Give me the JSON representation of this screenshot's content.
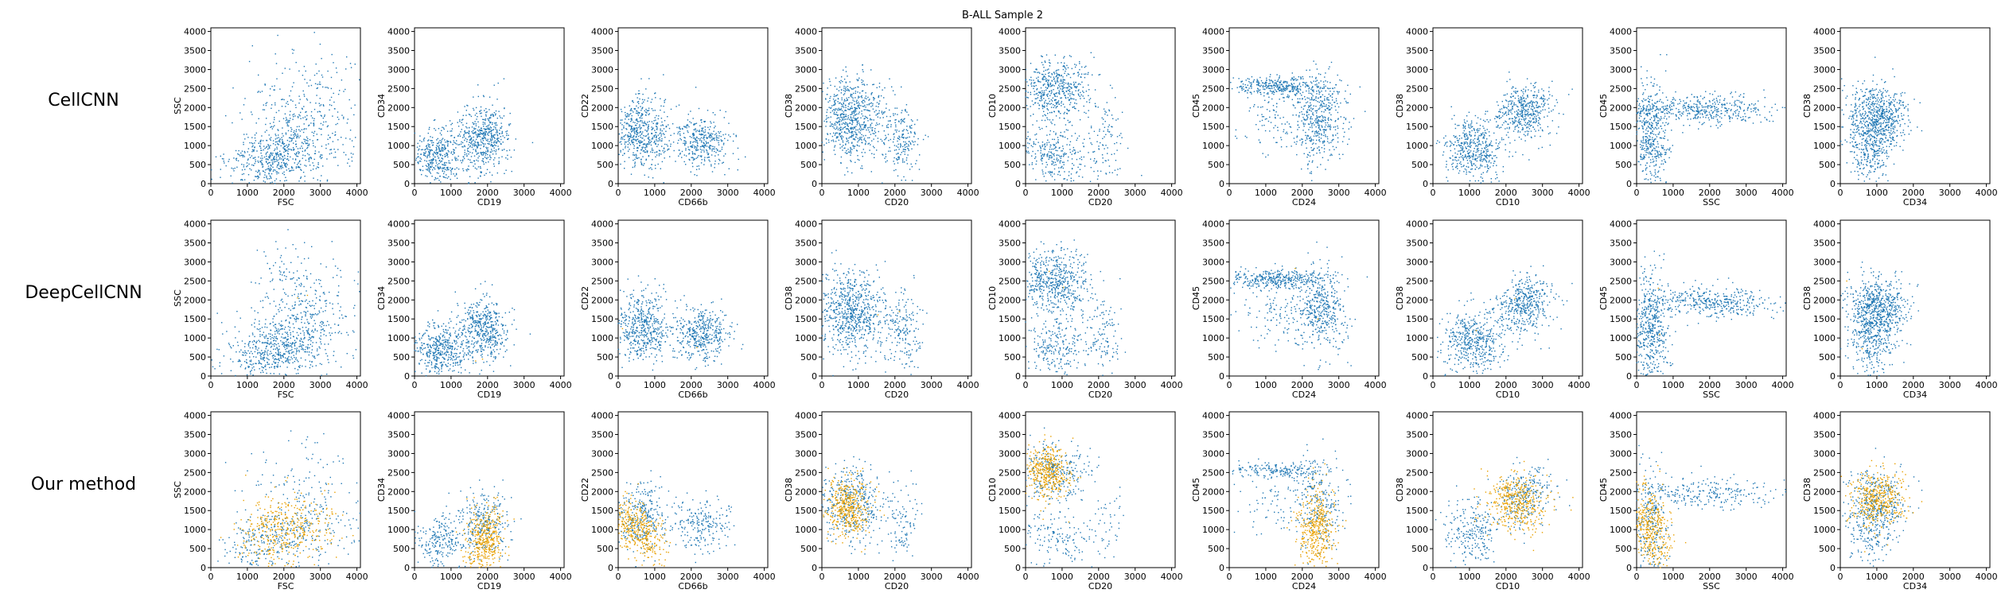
{
  "figure": {
    "title": "B-ALL Sample 2",
    "rows": [
      "CellCNN",
      "DeepCellCNN",
      "Our method"
    ]
  },
  "colors": {
    "background_cells": "#1f77b4",
    "selected_cells": "#e8a000"
  },
  "chart_data": {
    "type": "scatter",
    "title": "B-ALL Sample 2",
    "grid": false,
    "legend": "none",
    "xlim": [
      0,
      4096
    ],
    "ylim": [
      0,
      4096
    ],
    "ticks": [
      0,
      500,
      1000,
      1500,
      2000,
      2500,
      3000,
      3500,
      4000
    ],
    "x_ticks": [
      0,
      1000,
      2000,
      3000,
      4000
    ],
    "panels": [
      {
        "xlabel": "FSC",
        "ylabel": "SSC",
        "clusters": [
          {
            "x": 1700,
            "y": 700,
            "sx": 700,
            "sy": 380,
            "w": 0.55,
            "rot": 0.25
          },
          {
            "x": 2600,
            "y": 1600,
            "sx": 800,
            "sy": 900,
            "w": 0.45,
            "rot": 0.6
          }
        ],
        "selected_clusters": [
          {
            "x": 2000,
            "y": 1000,
            "sx": 650,
            "sy": 450,
            "w": 1.0,
            "rot": 0.3
          }
        ]
      },
      {
        "xlabel": "CD19",
        "ylabel": "CD34",
        "clusters": [
          {
            "x": 1900,
            "y": 1200,
            "sx": 350,
            "sy": 450,
            "w": 0.55,
            "rot": 0.0
          },
          {
            "x": 700,
            "y": 700,
            "sx": 380,
            "sy": 350,
            "w": 0.45,
            "rot": 0.0
          }
        ],
        "selected_clusters": [
          {
            "x": 1950,
            "y": 700,
            "sx": 250,
            "sy": 450,
            "w": 1.0,
            "rot": 0.0
          }
        ]
      },
      {
        "xlabel": "CD66b",
        "ylabel": "CD22",
        "clusters": [
          {
            "x": 650,
            "y": 1300,
            "sx": 380,
            "sy": 450,
            "w": 0.55,
            "rot": 0.0
          },
          {
            "x": 2300,
            "y": 1100,
            "sx": 380,
            "sy": 350,
            "w": 0.45,
            "rot": 0.0
          }
        ],
        "selected_clusters": [
          {
            "x": 500,
            "y": 1000,
            "sx": 300,
            "sy": 500,
            "w": 1.0,
            "rot": 0.7
          }
        ]
      },
      {
        "xlabel": "CD20",
        "ylabel": "CD38",
        "clusters": [
          {
            "x": 800,
            "y": 1700,
            "sx": 450,
            "sy": 550,
            "w": 0.8,
            "rot": 0.0
          },
          {
            "x": 2200,
            "y": 1200,
            "sx": 250,
            "sy": 500,
            "w": 0.2,
            "rot": 0.0
          }
        ],
        "selected_clusters": [
          {
            "x": 700,
            "y": 1600,
            "sx": 300,
            "sy": 400,
            "w": 1.0,
            "rot": 0.0
          }
        ]
      },
      {
        "xlabel": "CD20",
        "ylabel": "CD10",
        "clusters": [
          {
            "x": 800,
            "y": 2500,
            "sx": 500,
            "sy": 400,
            "w": 0.6,
            "rot": 0.0
          },
          {
            "x": 800,
            "y": 800,
            "sx": 500,
            "sy": 400,
            "w": 0.3,
            "rot": 0.0
          },
          {
            "x": 2200,
            "y": 1100,
            "sx": 250,
            "sy": 500,
            "w": 0.1,
            "rot": 0.0
          }
        ],
        "selected_clusters": [
          {
            "x": 600,
            "y": 2500,
            "sx": 300,
            "sy": 350,
            "w": 1.0,
            "rot": 0.0
          }
        ]
      },
      {
        "xlabel": "CD24",
        "ylabel": "CD45",
        "clusters": [
          {
            "x": 1300,
            "y": 2550,
            "sx": 650,
            "sy": 120,
            "w": 0.4,
            "rot": 0.0
          },
          {
            "x": 2500,
            "y": 1700,
            "sx": 350,
            "sy": 600,
            "w": 0.5,
            "rot": 0.0
          },
          {
            "x": 1200,
            "y": 1600,
            "sx": 500,
            "sy": 400,
            "w": 0.1,
            "rot": 0.0
          }
        ],
        "selected_clusters": [
          {
            "x": 2400,
            "y": 1000,
            "sx": 250,
            "sy": 600,
            "w": 1.0,
            "rot": 0.0
          }
        ]
      },
      {
        "xlabel": "CD10",
        "ylabel": "CD38",
        "clusters": [
          {
            "x": 2500,
            "y": 1900,
            "sx": 400,
            "sy": 350,
            "w": 0.5,
            "rot": 0.8
          },
          {
            "x": 1100,
            "y": 900,
            "sx": 400,
            "sy": 400,
            "w": 0.5,
            "rot": 0.0
          }
        ],
        "selected_clusters": [
          {
            "x": 2300,
            "y": 1700,
            "sx": 350,
            "sy": 400,
            "w": 1.0,
            "rot": 0.8
          }
        ]
      },
      {
        "xlabel": "SSC",
        "ylabel": "CD45",
        "clusters": [
          {
            "x": 1800,
            "y": 1950,
            "sx": 1000,
            "sy": 200,
            "w": 0.5,
            "rot": 0.0
          },
          {
            "x": 400,
            "y": 1200,
            "sx": 250,
            "sy": 700,
            "w": 0.5,
            "rot": 0.0
          }
        ],
        "selected_clusters": [
          {
            "x": 400,
            "y": 1000,
            "sx": 250,
            "sy": 600,
            "w": 1.0,
            "rot": 0.2
          }
        ]
      },
      {
        "xlabel": "CD34",
        "ylabel": "CD38",
        "clusters": [
          {
            "x": 1000,
            "y": 1700,
            "sx": 400,
            "sy": 450,
            "w": 0.8,
            "rot": 0.0
          },
          {
            "x": 800,
            "y": 700,
            "sx": 300,
            "sy": 400,
            "w": 0.2,
            "rot": 0.0
          }
        ],
        "selected_clusters": [
          {
            "x": 1000,
            "y": 1800,
            "sx": 350,
            "sy": 350,
            "w": 1.0,
            "rot": 0.0
          }
        ]
      }
    ],
    "rows": [
      {
        "method": "CellCNN",
        "selected_fraction": 0.0,
        "selected_noise": 0.0
      },
      {
        "method": "DeepCellCNN",
        "selected_fraction": 0.0,
        "selected_noise": 0.002
      },
      {
        "method": "Our method",
        "selected_fraction": 0.45,
        "selected_noise": 0.0
      }
    ]
  }
}
